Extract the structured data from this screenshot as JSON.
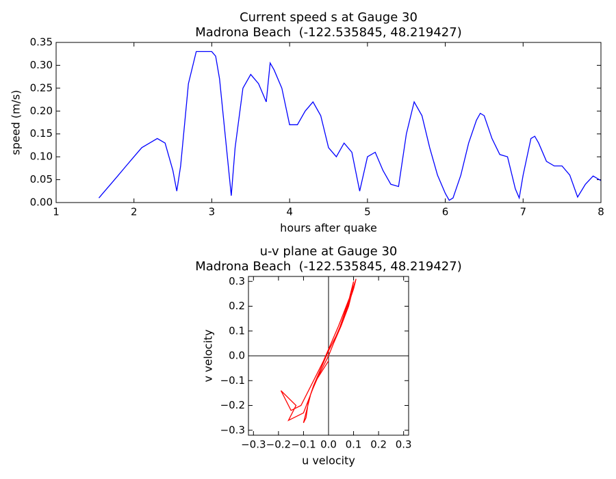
{
  "chart_data": [
    {
      "type": "line",
      "title": "Current speed s at Gauge 30",
      "subtitle": "Madrona Beach  (-122.535845, 48.219427)",
      "x_label": "hours after quake",
      "y_label": "speed (m/s)",
      "x": [
        1.55,
        1.6,
        1.7,
        1.8,
        1.9,
        2.0,
        2.1,
        2.2,
        2.3,
        2.4,
        2.5,
        2.55,
        2.6,
        2.7,
        2.8,
        2.9,
        3.0,
        3.05,
        3.1,
        3.2,
        3.25,
        3.3,
        3.4,
        3.5,
        3.6,
        3.7,
        3.75,
        3.8,
        3.9,
        4.0,
        4.1,
        4.2,
        4.3,
        4.4,
        4.5,
        4.6,
        4.7,
        4.8,
        4.9,
        5.0,
        5.1,
        5.2,
        5.3,
        5.4,
        5.5,
        5.6,
        5.7,
        5.8,
        5.9,
        6.0,
        6.05,
        6.1,
        6.2,
        6.3,
        6.4,
        6.45,
        6.5,
        6.6,
        6.7,
        6.8,
        6.9,
        6.95,
        7.0,
        7.1,
        7.15,
        7.2,
        7.3,
        7.4,
        7.5,
        7.6,
        7.7,
        7.8,
        7.9,
        8.0
      ],
      "series": [
        {
          "name": "speed",
          "color": "#0000ff",
          "values": [
            0.01,
            0.02,
            0.04,
            0.06,
            0.08,
            0.1,
            0.12,
            0.13,
            0.14,
            0.13,
            0.07,
            0.025,
            0.08,
            0.26,
            0.33,
            0.33,
            0.33,
            0.32,
            0.27,
            0.1,
            0.015,
            0.12,
            0.25,
            0.28,
            0.26,
            0.22,
            0.305,
            0.29,
            0.25,
            0.17,
            0.17,
            0.2,
            0.22,
            0.19,
            0.12,
            0.1,
            0.13,
            0.11,
            0.025,
            0.1,
            0.11,
            0.07,
            0.04,
            0.035,
            0.15,
            0.22,
            0.19,
            0.12,
            0.06,
            0.02,
            0.005,
            0.01,
            0.06,
            0.13,
            0.18,
            0.195,
            0.19,
            0.14,
            0.105,
            0.1,
            0.03,
            0.01,
            0.06,
            0.14,
            0.145,
            0.13,
            0.09,
            0.08,
            0.08,
            0.06,
            0.012,
            0.04,
            0.058,
            0.048
          ]
        }
      ],
      "xlim": [
        1,
        8
      ],
      "xticks": [
        1,
        2,
        3,
        4,
        5,
        6,
        7,
        8
      ],
      "ylim": [
        0,
        0.35
      ],
      "yticks": [
        {
          "value": 0,
          "label": "0.00"
        },
        {
          "value": 0.05,
          "label": "0.05"
        },
        {
          "value": 0.1,
          "label": "0.10"
        },
        {
          "value": 0.15,
          "label": "0.15"
        },
        {
          "value": 0.2,
          "label": "0.20"
        },
        {
          "value": 0.25,
          "label": "0.25"
        },
        {
          "value": 0.3,
          "label": "0.30"
        },
        {
          "value": 0.35,
          "label": "0.35"
        }
      ]
    },
    {
      "type": "line",
      "title": "u-v plane at Gauge 30",
      "subtitle": "Madrona Beach  (-122.535845, 48.219427)",
      "x_label": "u velocity",
      "y_label": "v velocity",
      "zero_lines": true,
      "x": [
        0,
        0.02,
        0.05,
        0.08,
        0.1,
        0.11,
        0.1,
        0.06,
        0.03,
        0,
        -0.03,
        -0.06,
        -0.08,
        -0.09,
        -0.1,
        -0.07,
        -0.04,
        0,
        0.04,
        0.08,
        0.1,
        0.09,
        0.04,
        -0.02,
        -0.06,
        -0.11,
        -0.15,
        -0.19,
        -0.13,
        -0.16,
        -0.1,
        -0.05,
        0
      ],
      "series": [
        {
          "name": "u-v",
          "color": "#ff0000",
          "values": [
            0,
            0.05,
            0.12,
            0.2,
            0.28,
            0.31,
            0.27,
            0.15,
            0.08,
            0.02,
            -0.05,
            -0.12,
            -0.18,
            -0.25,
            -0.27,
            -0.15,
            -0.08,
            0,
            0.1,
            0.22,
            0.3,
            0.25,
            0.12,
            -0.02,
            -0.1,
            -0.2,
            -0.22,
            -0.14,
            -0.2,
            -0.26,
            -0.23,
            -0.1,
            -0.02
          ]
        }
      ],
      "xlim": [
        -0.32,
        0.32
      ],
      "xticks": [
        {
          "value": -0.3,
          "label": "−0.3"
        },
        {
          "value": -0.2,
          "label": "−0.2"
        },
        {
          "value": -0.1,
          "label": "−0.1"
        },
        {
          "value": 0,
          "label": "0.0"
        },
        {
          "value": 0.1,
          "label": "0.1"
        },
        {
          "value": 0.2,
          "label": "0.2"
        },
        {
          "value": 0.3,
          "label": "0.3"
        }
      ],
      "ylim": [
        -0.32,
        0.32
      ],
      "yticks": [
        {
          "value": -0.3,
          "label": "−0.3"
        },
        {
          "value": -0.2,
          "label": "−0.2"
        },
        {
          "value": -0.1,
          "label": "−0.1"
        },
        {
          "value": 0,
          "label": "0.0"
        },
        {
          "value": 0.1,
          "label": "0.1"
        },
        {
          "value": 0.2,
          "label": "0.2"
        },
        {
          "value": 0.3,
          "label": "0.3"
        }
      ]
    }
  ]
}
